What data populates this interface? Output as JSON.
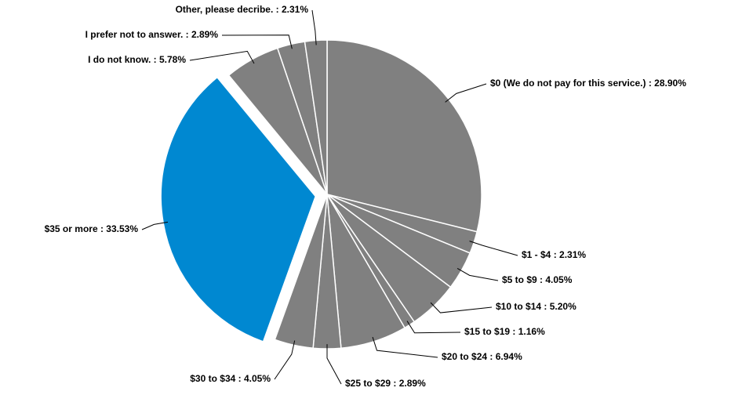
{
  "chart_data": {
    "type": "pie",
    "categories": [
      "$0 (We do not pay for this service.)",
      "$1 - $4",
      "$5 to $9",
      "$10 to $14",
      "$15 to $19",
      "$20 to $24",
      "$25 to $29",
      "$30 to $34",
      "$35 or more",
      "I do not know.",
      "I prefer not to answer.",
      "Other, please decribe."
    ],
    "values": [
      28.9,
      2.31,
      4.05,
      5.2,
      1.16,
      6.94,
      2.89,
      4.05,
      33.53,
      5.78,
      2.89,
      2.31
    ],
    "value_labels": [
      "28.90%",
      "2.31%",
      "4.05%",
      "5.20%",
      "1.16%",
      "6.94%",
      "2.89%",
      "4.05%",
      "33.53%",
      "5.78%",
      "2.89%",
      "2.31%"
    ],
    "label_separator": " : ",
    "colors": [
      "#808080",
      "#808080",
      "#808080",
      "#808080",
      "#808080",
      "#808080",
      "#808080",
      "#808080",
      "#0088d1",
      "#808080",
      "#808080",
      "#808080"
    ],
    "exploded_index": 8
  }
}
